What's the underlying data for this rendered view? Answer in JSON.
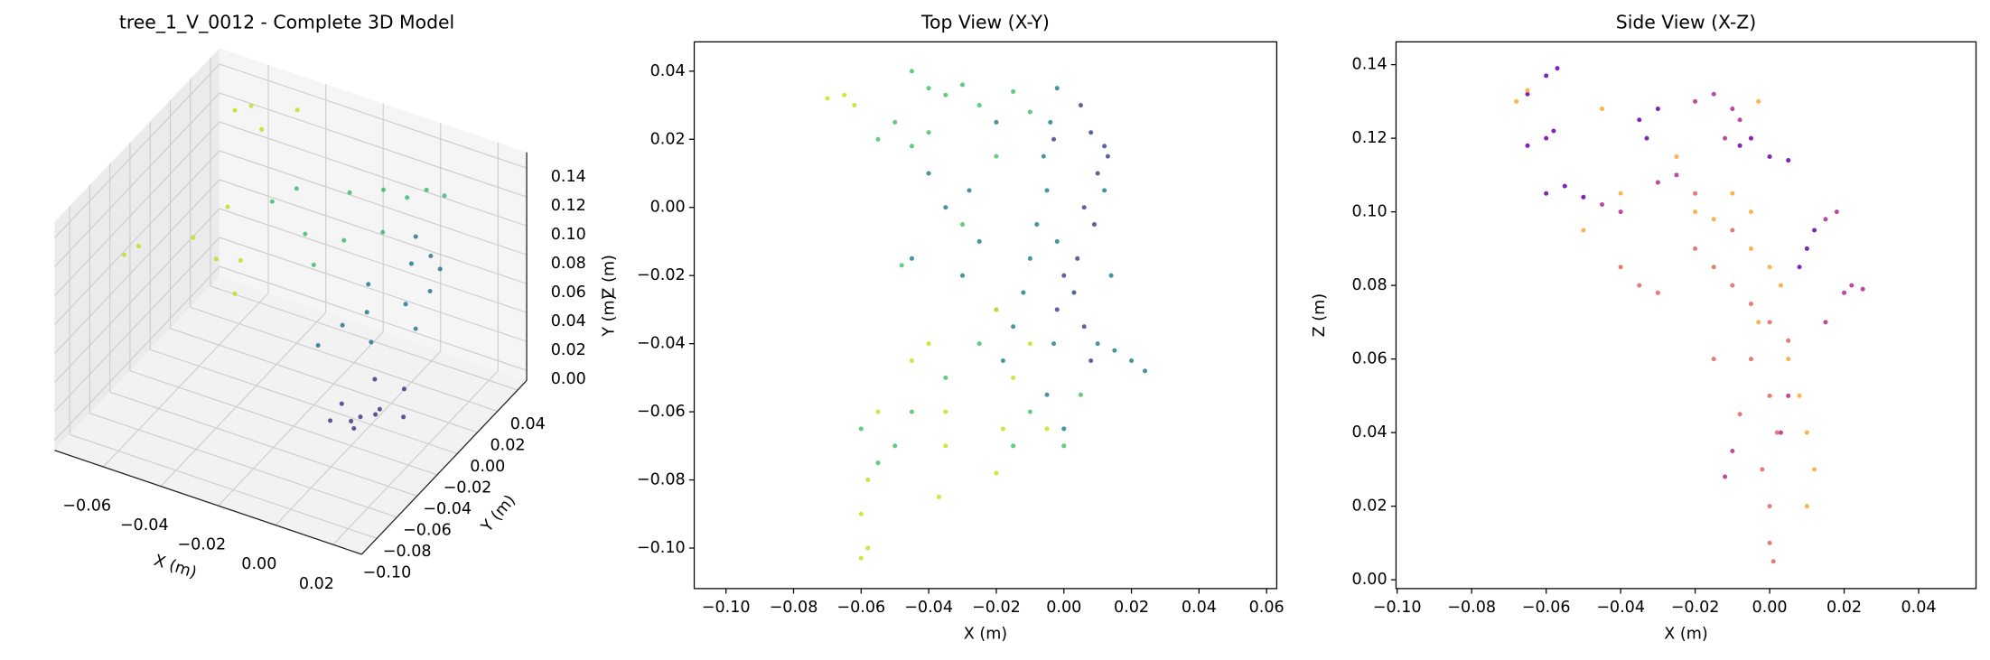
{
  "chart_data": [
    {
      "type": "scatter3d",
      "title": "tree_1_V_0012 - Complete 3D Model",
      "xlabel": "X (m)",
      "ylabel": "Y (m)",
      "zlabel": "Z (m)",
      "xlim": [
        -0.077,
        0.03
      ],
      "ylim": [
        -0.115,
        0.049
      ],
      "zlim": [
        -0.007,
        0.151
      ],
      "grid": true,
      "xticks": [
        {
          "value": -0.06,
          "label": "−0.06"
        },
        {
          "value": -0.04,
          "label": "−0.04"
        },
        {
          "value": -0.02,
          "label": "−0.02"
        },
        {
          "value": 0,
          "label": "0.00"
        },
        {
          "value": 0.02,
          "label": "0.02"
        }
      ],
      "yticks": [
        {
          "value": -0.1,
          "label": "−0.10"
        },
        {
          "value": -0.08,
          "label": "−0.08"
        },
        {
          "value": -0.06,
          "label": "−0.06"
        },
        {
          "value": -0.04,
          "label": "−0.04"
        },
        {
          "value": -0.02,
          "label": "−0.02"
        },
        {
          "value": 0,
          "label": "0.00"
        },
        {
          "value": 0.02,
          "label": "0.02"
        },
        {
          "value": 0.04,
          "label": "0.04"
        }
      ],
      "zticks": [
        {
          "value": 0,
          "label": "0.00"
        },
        {
          "value": 0.02,
          "label": "0.02"
        },
        {
          "value": 0.04,
          "label": "0.04"
        },
        {
          "value": 0.06,
          "label": "0.06"
        },
        {
          "value": 0.08,
          "label": "0.08"
        },
        {
          "value": 0.1,
          "label": "0.10"
        },
        {
          "value": 0.12,
          "label": "0.12"
        },
        {
          "value": 0.14,
          "label": "0.14"
        }
      ],
      "series": [
        {
          "color": "#443983",
          "x": [
            0.0,
            0.005,
            0.01,
            -0.005,
            0.012,
            0.02,
            0.015,
            0.008,
            -0.002,
            0.003
          ],
          "y": [
            -0.04,
            -0.045,
            -0.04,
            -0.035,
            -0.05,
            -0.045,
            -0.03,
            -0.06,
            -0.055,
            -0.025
          ],
          "z": [
            0.01,
            0.02,
            0.025,
            0.015,
            0.03,
            0.03,
            0.035,
            0.025,
            0.02,
            0.03
          ]
        },
        {
          "color": "#2a788e",
          "x": [
            0.0,
            -0.005,
            0.005,
            -0.01,
            0.01,
            0.0,
            -0.008,
            0.012,
            -0.015,
            0.005,
            -0.002,
            0.01
          ],
          "y": [
            -0.02,
            -0.01,
            0.0,
            -0.02,
            0.01,
            0.02,
            0.0,
            -0.01,
            -0.03,
            0.025,
            0.03,
            0.02
          ],
          "z": [
            0.05,
            0.06,
            0.065,
            0.055,
            0.07,
            0.075,
            0.07,
            0.06,
            0.045,
            0.08,
            0.085,
            0.078
          ]
        },
        {
          "color": "#3fbc73",
          "x": [
            -0.02,
            -0.03,
            -0.01,
            -0.025,
            -0.015,
            -0.005,
            0.0,
            -0.04,
            -0.045,
            -0.02,
            0.008
          ],
          "y": [
            0.01,
            0.0,
            0.02,
            0.03,
            0.035,
            0.03,
            0.035,
            0.02,
            0.01,
            -0.02,
            0.03
          ],
          "z": [
            0.085,
            0.09,
            0.09,
            0.1,
            0.105,
            0.11,
            0.115,
            0.1,
            0.095,
            0.09,
            0.12
          ]
        },
        {
          "color": "#c2df23",
          "x": [
            -0.065,
            -0.06,
            -0.055,
            -0.05,
            -0.055,
            -0.04,
            -0.035,
            -0.06,
            -0.058,
            -0.045,
            -0.03
          ],
          "y": [
            0.03,
            0.032,
            0.028,
            -0.02,
            -0.04,
            -0.06,
            -0.05,
            -0.08,
            -0.1,
            0.035,
            -0.07
          ],
          "z": [
            0.13,
            0.135,
            0.125,
            0.11,
            0.1,
            0.11,
            0.105,
            0.12,
            0.13,
            0.14,
            0.1
          ]
        }
      ]
    },
    {
      "type": "scatter",
      "title": "Top View (X-Y)",
      "xlabel": "X (m)",
      "ylabel": "Y (m)",
      "xlim": [
        -0.1094,
        0.063
      ],
      "ylim": [
        -0.1119,
        0.0486
      ],
      "xticks": [
        {
          "value": -0.1,
          "label": "−0.10"
        },
        {
          "value": -0.08,
          "label": "−0.08"
        },
        {
          "value": -0.06,
          "label": "−0.06"
        },
        {
          "value": -0.04,
          "label": "−0.04"
        },
        {
          "value": -0.02,
          "label": "−0.02"
        },
        {
          "value": 0,
          "label": "0.00"
        },
        {
          "value": 0.02,
          "label": "0.02"
        },
        {
          "value": 0.04,
          "label": "0.04"
        },
        {
          "value": 0.06,
          "label": "0.06"
        }
      ],
      "yticks": [
        {
          "value": -0.1,
          "label": "−0.10"
        },
        {
          "value": -0.08,
          "label": "−0.08"
        },
        {
          "value": -0.06,
          "label": "−0.06"
        },
        {
          "value": -0.04,
          "label": "−0.04"
        },
        {
          "value": -0.02,
          "label": "−0.02"
        },
        {
          "value": 0,
          "label": "0.00"
        },
        {
          "value": 0.02,
          "label": "0.02"
        },
        {
          "value": 0.04,
          "label": "0.04"
        }
      ],
      "series": [
        {
          "color": "#3e4a89",
          "x": [
            0.012,
            0.008,
            0.01,
            0.006,
            0.009,
            0.004,
            0.003,
            0.006,
            0.008,
            -0.002,
            0.013,
            0.005,
            -0.003,
            0.0
          ],
          "y": [
            0.018,
            0.022,
            0.01,
            0.0,
            -0.005,
            -0.015,
            -0.025,
            -0.035,
            -0.045,
            -0.03,
            0.015,
            0.03,
            0.02,
            -0.02
          ]
        },
        {
          "color": "#26828e",
          "x": [
            -0.002,
            -0.004,
            -0.006,
            -0.005,
            -0.008,
            -0.01,
            -0.012,
            -0.015,
            -0.018,
            -0.002,
            -0.003,
            -0.005,
            0.0,
            0.01,
            0.015,
            0.02,
            0.024,
            -0.02,
            -0.028,
            -0.035,
            -0.04,
            -0.025,
            -0.03,
            -0.045,
            0.012,
            0.014
          ],
          "y": [
            0.035,
            0.025,
            0.015,
            0.005,
            -0.005,
            -0.015,
            -0.025,
            -0.035,
            -0.045,
            -0.01,
            -0.04,
            -0.055,
            -0.065,
            -0.04,
            -0.042,
            -0.045,
            -0.048,
            0.025,
            0.005,
            0.0,
            0.01,
            -0.01,
            -0.02,
            -0.015,
            0.005,
            -0.02
          ]
        },
        {
          "color": "#4ac16d",
          "x": [
            -0.045,
            -0.04,
            -0.035,
            -0.03,
            -0.025,
            -0.015,
            -0.01,
            -0.05,
            -0.055,
            -0.045,
            -0.04,
            -0.02,
            -0.03,
            -0.02,
            -0.025,
            -0.035,
            -0.045,
            -0.05,
            -0.055,
            -0.06,
            -0.01,
            -0.015,
            0.005,
            0.0,
            -0.048
          ],
          "y": [
            0.04,
            0.035,
            0.033,
            0.036,
            0.03,
            0.034,
            0.028,
            0.025,
            0.02,
            0.018,
            0.022,
            0.015,
            -0.005,
            -0.03,
            -0.04,
            -0.05,
            -0.06,
            -0.07,
            -0.075,
            -0.065,
            -0.06,
            -0.07,
            -0.055,
            -0.07,
            -0.017
          ]
        },
        {
          "color": "#c8e020",
          "x": [
            -0.065,
            -0.07,
            -0.062,
            -0.058,
            -0.06,
            -0.058,
            -0.055,
            -0.045,
            -0.04,
            -0.035,
            -0.035,
            -0.037,
            -0.02,
            -0.018,
            -0.015,
            -0.01,
            -0.02,
            -0.005,
            -0.06
          ],
          "y": [
            0.033,
            0.032,
            0.03,
            -0.1,
            -0.09,
            -0.08,
            -0.06,
            -0.045,
            -0.04,
            -0.06,
            -0.07,
            -0.085,
            -0.078,
            -0.065,
            -0.05,
            -0.04,
            -0.03,
            -0.065,
            -0.103
          ]
        }
      ]
    },
    {
      "type": "scatter",
      "title": "Side View (X-Z)",
      "xlabel": "X (m)",
      "ylabel": "Z (m)",
      "xlim": [
        -0.1003,
        0.0554
      ],
      "ylim": [
        -0.0024,
        0.1462
      ],
      "xticks": [
        {
          "value": -0.1,
          "label": "−0.10"
        },
        {
          "value": -0.08,
          "label": "−0.08"
        },
        {
          "value": -0.06,
          "label": "−0.06"
        },
        {
          "value": -0.04,
          "label": "−0.04"
        },
        {
          "value": -0.02,
          "label": "−0.02"
        },
        {
          "value": 0,
          "label": "0.00"
        },
        {
          "value": 0.02,
          "label": "0.02"
        },
        {
          "value": 0.04,
          "label": "0.04"
        }
      ],
      "yticks": [
        {
          "value": 0,
          "label": "0.00"
        },
        {
          "value": 0.02,
          "label": "0.02"
        },
        {
          "value": 0.04,
          "label": "0.04"
        },
        {
          "value": 0.06,
          "label": "0.06"
        },
        {
          "value": 0.08,
          "label": "0.08"
        },
        {
          "value": 0.1,
          "label": "0.10"
        },
        {
          "value": 0.12,
          "label": "0.12"
        },
        {
          "value": 0.14,
          "label": "0.14"
        }
      ],
      "series": [
        {
          "color": "#6a00a8",
          "x": [
            -0.065,
            -0.06,
            -0.057,
            -0.065,
            -0.06,
            -0.058,
            -0.035,
            -0.033,
            -0.03,
            -0.008,
            -0.005,
            0.0,
            0.005,
            -0.06,
            -0.055,
            -0.05,
            0.008,
            0.01,
            0.012
          ],
          "y": [
            0.132,
            0.137,
            0.139,
            0.118,
            0.12,
            0.122,
            0.125,
            0.12,
            0.128,
            0.118,
            0.12,
            0.115,
            0.114,
            0.105,
            0.107,
            0.104,
            0.085,
            0.09,
            0.095
          ]
        },
        {
          "color": "#b12a90",
          "x": [
            -0.02,
            -0.015,
            -0.01,
            -0.025,
            -0.03,
            -0.04,
            -0.045,
            0.015,
            0.018,
            0.02,
            0.022,
            0.025,
            0.015,
            -0.012,
            -0.008,
            -0.01,
            -0.012,
            0.005,
            0.003
          ],
          "y": [
            0.13,
            0.132,
            0.128,
            0.11,
            0.108,
            0.1,
            0.102,
            0.098,
            0.1,
            0.078,
            0.08,
            0.079,
            0.07,
            0.12,
            0.125,
            0.035,
            0.028,
            0.05,
            0.04
          ]
        },
        {
          "color": "#e16462",
          "x": [
            -0.04,
            -0.035,
            -0.03,
            -0.02,
            -0.015,
            -0.01,
            -0.005,
            0.0,
            -0.005,
            0.0,
            0.002,
            -0.002,
            0.0,
            0.0,
            0.001,
            -0.02,
            -0.01,
            0.005,
            -0.015,
            -0.008
          ],
          "y": [
            0.085,
            0.08,
            0.078,
            0.09,
            0.085,
            0.08,
            0.075,
            0.07,
            0.06,
            0.05,
            0.04,
            0.03,
            0.02,
            0.01,
            0.005,
            0.105,
            0.095,
            0.065,
            0.06,
            0.045
          ]
        },
        {
          "color": "#fca636",
          "x": [
            -0.065,
            -0.068,
            -0.045,
            -0.025,
            -0.02,
            -0.015,
            -0.01,
            -0.005,
            -0.005,
            0.0,
            0.003,
            -0.003,
            0.005,
            0.008,
            0.01,
            0.012,
            0.01,
            -0.003,
            -0.05,
            -0.04
          ],
          "y": [
            0.133,
            0.13,
            0.128,
            0.115,
            0.1,
            0.098,
            0.105,
            0.1,
            0.09,
            0.085,
            0.08,
            0.07,
            0.06,
            0.05,
            0.04,
            0.03,
            0.02,
            0.13,
            0.095,
            0.105
          ]
        }
      ]
    }
  ]
}
